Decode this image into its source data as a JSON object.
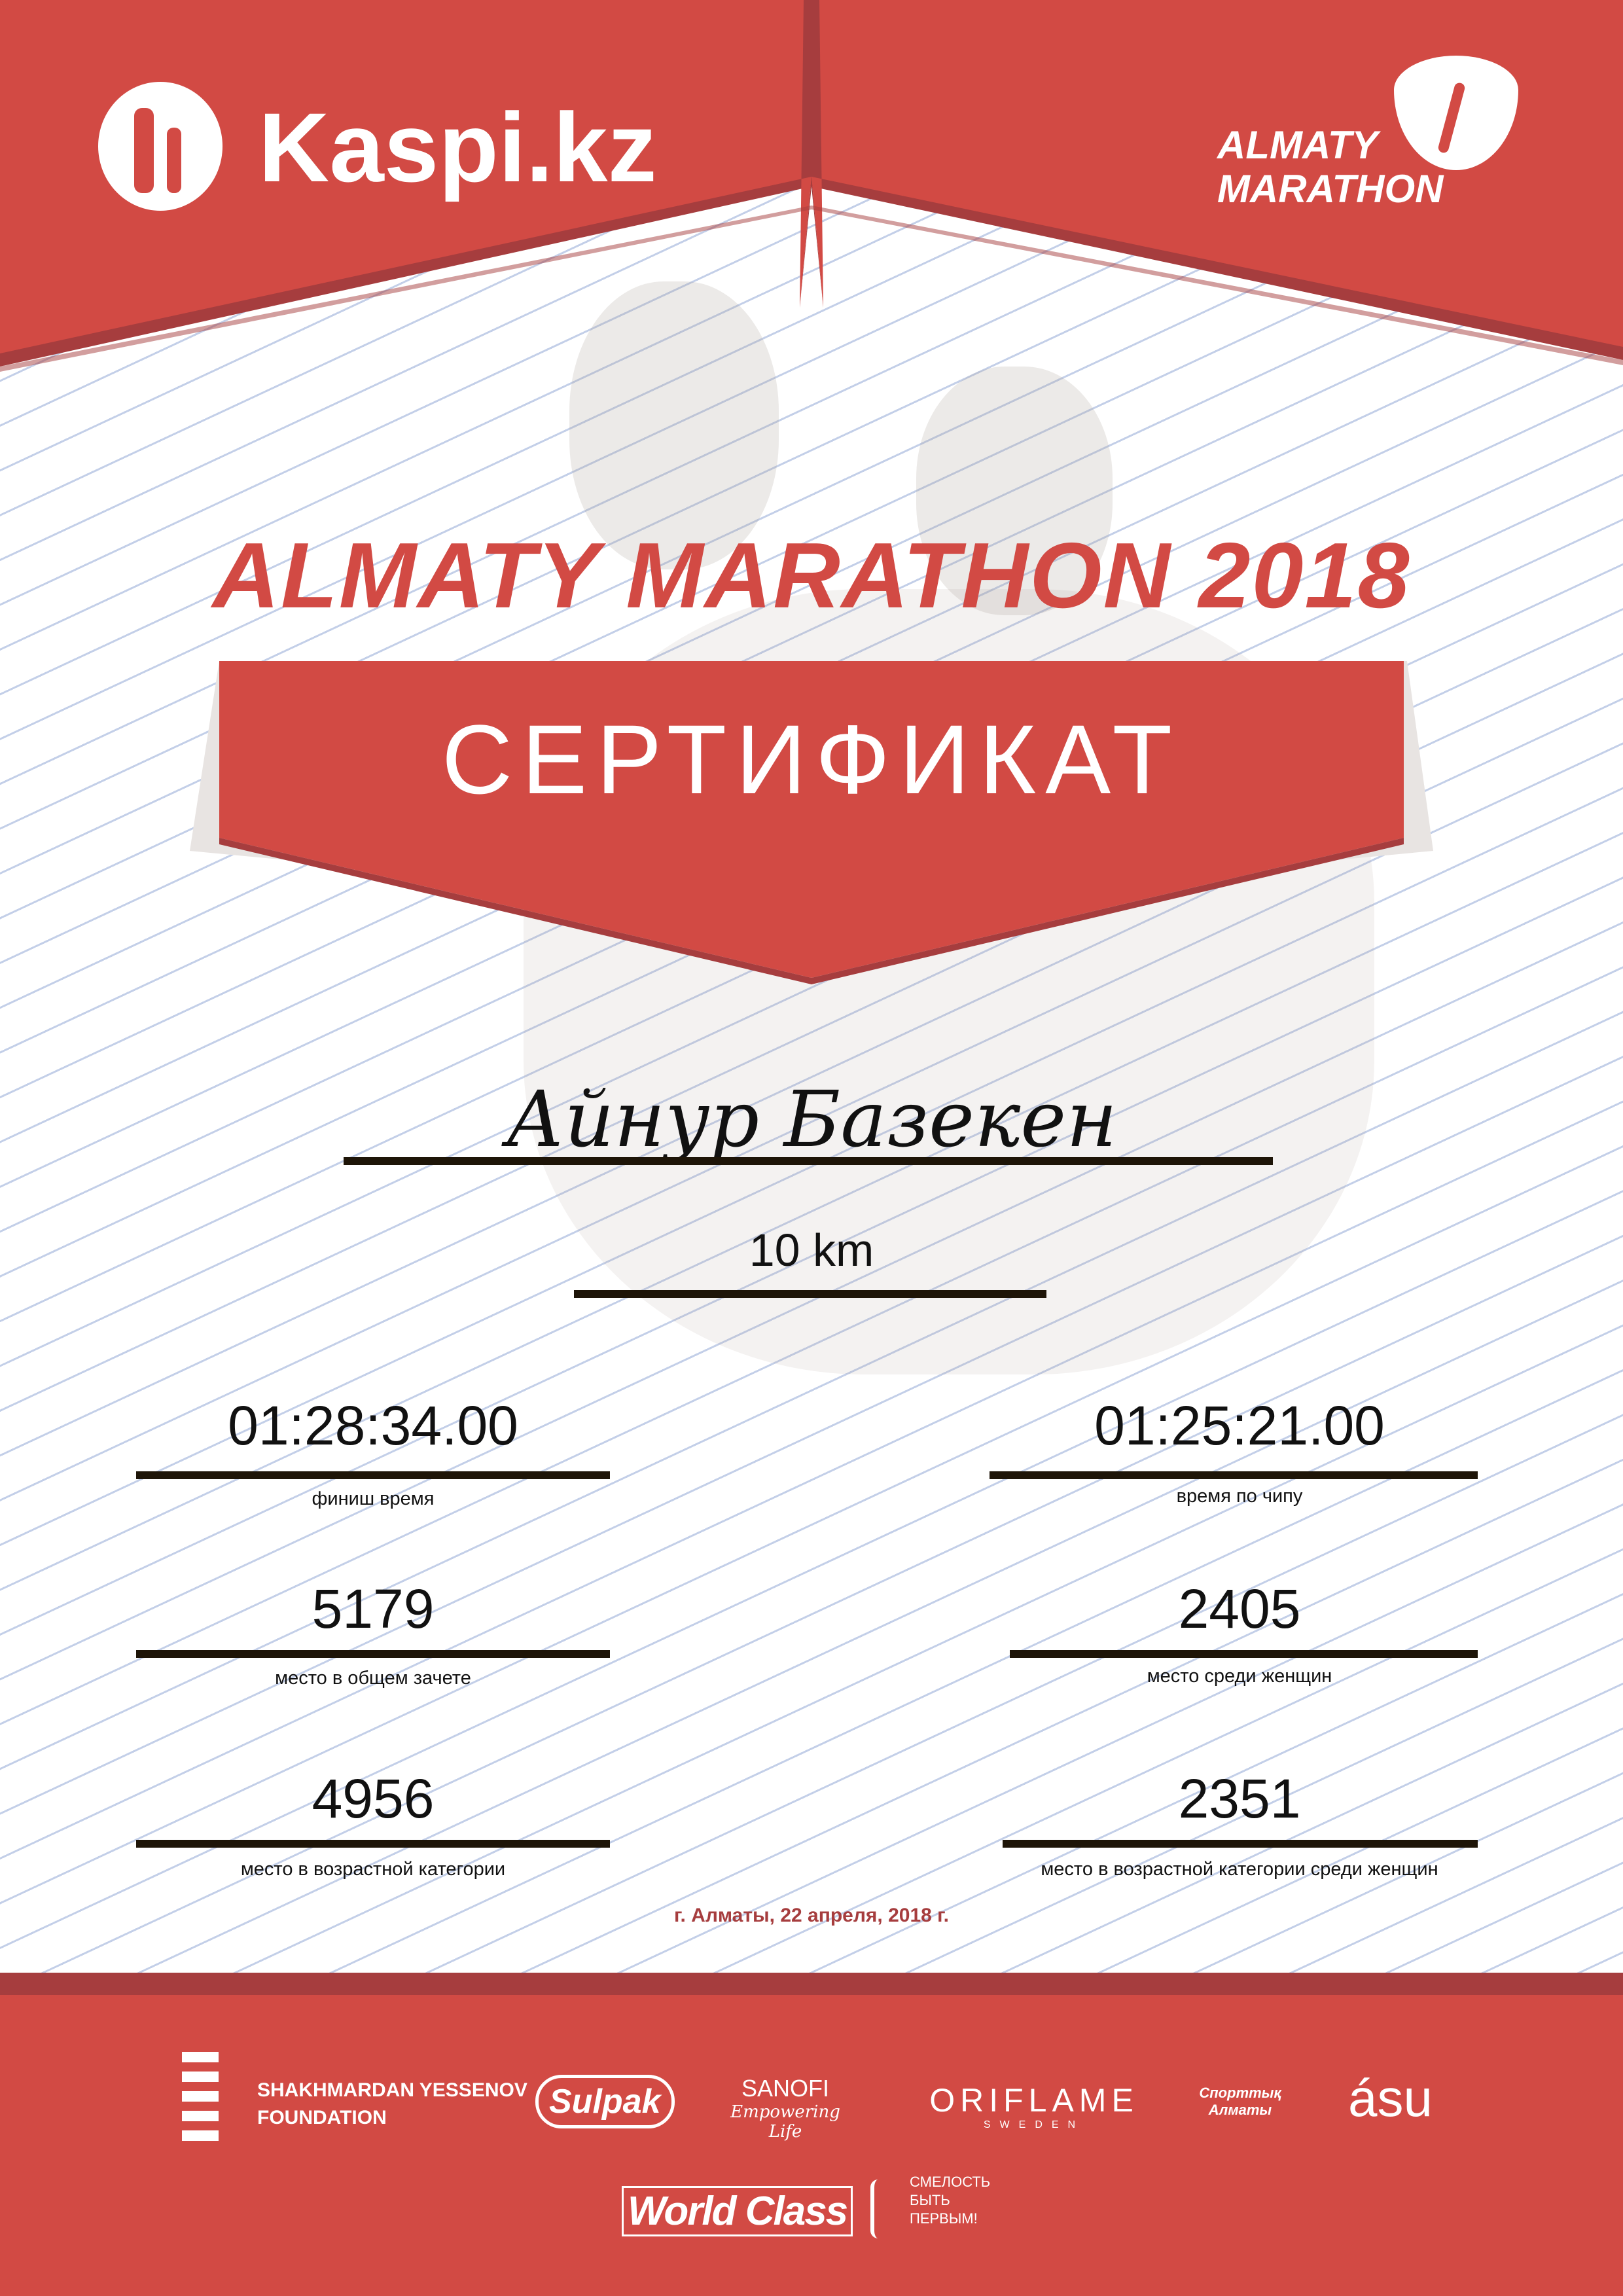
{
  "header": {
    "sponsor_logo": "Kaspi.kz",
    "event_logo_line1": "ALMATY",
    "event_logo_line2": "MARATHON"
  },
  "certificate": {
    "event_title": "ALMATY MARATHON 2018",
    "ribbon_title": "СЕРТИФИКАТ",
    "participant_name": "Айнур Базекен",
    "distance": "10 km",
    "stats": [
      {
        "value": "01:28:34.00",
        "label": "финиш время"
      },
      {
        "value": "01:25:21.00",
        "label": "время по чипу"
      },
      {
        "value": "5179",
        "label": "место в общем зачете"
      },
      {
        "value": "2405",
        "label": "место среди женщин"
      },
      {
        "value": "4956",
        "label": "место в возрастной категории"
      },
      {
        "value": "2351",
        "label": "место в возрастной категории среди женщин"
      }
    ],
    "date_place": "г. Алматы, 22 апреля, 2018 г."
  },
  "footer": {
    "sponsors": [
      {
        "line1": "SHAKHMARDAN YESSENOV",
        "line2": "FOUNDATION"
      },
      {
        "line1": "Sulpak"
      },
      {
        "line1": "SANOFI",
        "line2": "Empowering Life"
      },
      {
        "line1": "ORIFLAME",
        "line2": "SWEDEN"
      },
      {
        "line1": "Спорттық",
        "line2": "Алматы"
      },
      {
        "line1": "ásu"
      },
      {
        "line1": "World Class"
      },
      {
        "line1": "СМЕЛОСТЬ",
        "line2": "БЫТЬ",
        "line3": "ПЕРВЫМ!"
      }
    ]
  },
  "colors": {
    "brand_red": "#d24a44",
    "dark_red": "#a63d3e",
    "text_dark": "#1e1508"
  }
}
